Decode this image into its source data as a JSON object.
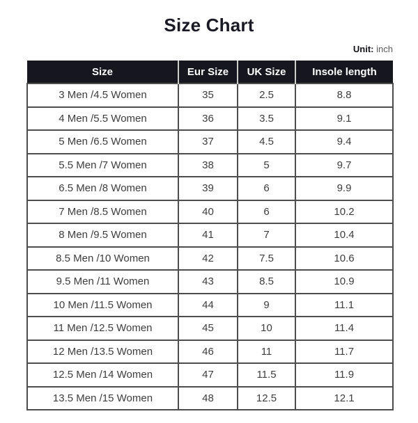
{
  "page": {
    "title": "Size Chart",
    "unit_label": "Unit:",
    "unit_value": "inch"
  },
  "table": {
    "headers": [
      "Size",
      "Eur Size",
      "UK Size",
      "Insole length"
    ],
    "rows": [
      [
        "3 Men /4.5 Women",
        "35",
        "2.5",
        "8.8"
      ],
      [
        "4 Men /5.5 Women",
        "36",
        "3.5",
        "9.1"
      ],
      [
        "5 Men /6.5 Women",
        "37",
        "4.5",
        "9.4"
      ],
      [
        "5.5 Men /7 Women",
        "38",
        "5",
        "9.7"
      ],
      [
        "6.5 Men /8 Women",
        "39",
        "6",
        "9.9"
      ],
      [
        "7 Men /8.5 Women",
        "40",
        "6",
        "10.2"
      ],
      [
        "8 Men /9.5 Women",
        "41",
        "7",
        "10.4"
      ],
      [
        "8.5 Men /10 Women",
        "42",
        "7.5",
        "10.6"
      ],
      [
        "9.5 Men /11 Women",
        "43",
        "8.5",
        "10.9"
      ],
      [
        "10 Men /11.5 Women",
        "44",
        "9",
        "11.1"
      ],
      [
        "11 Men /12.5 Women",
        "45",
        "10",
        "11.4"
      ],
      [
        "12 Men /13.5 Women",
        "46",
        "11",
        "11.7"
      ],
      [
        "12.5 Men /14 Women",
        "47",
        "11.5",
        "11.9"
      ],
      [
        "13.5 Men /15 Women",
        "48",
        "12.5",
        "12.1"
      ]
    ]
  },
  "colors": {
    "header_bg": "#16161f",
    "header_text": "#ffffff",
    "header_divider": "#cccccc",
    "body_border": "#4d4d4d",
    "body_text": "#3d3d3d",
    "title_text": "#1a1a24",
    "unit_value_text": "#595959"
  },
  "chart_data": {
    "type": "table",
    "title": "Size Chart",
    "unit": "inch",
    "columns": [
      "Size",
      "Eur Size",
      "UK Size",
      "Insole length"
    ],
    "rows": [
      [
        "3 Men /4.5 Women",
        35,
        2.5,
        8.8
      ],
      [
        "4 Men /5.5 Women",
        36,
        3.5,
        9.1
      ],
      [
        "5 Men /6.5 Women",
        37,
        4.5,
        9.4
      ],
      [
        "5.5 Men /7 Women",
        38,
        5,
        9.7
      ],
      [
        "6.5 Men /8 Women",
        39,
        6,
        9.9
      ],
      [
        "7 Men /8.5 Women",
        40,
        6,
        10.2
      ],
      [
        "8 Men /9.5 Women",
        41,
        7,
        10.4
      ],
      [
        "8.5 Men /10 Women",
        42,
        7.5,
        10.6
      ],
      [
        "9.5 Men /11 Women",
        43,
        8.5,
        10.9
      ],
      [
        "10 Men /11.5 Women",
        44,
        9,
        11.1
      ],
      [
        "11 Men /12.5 Women",
        45,
        10,
        11.4
      ],
      [
        "12 Men /13.5 Women",
        46,
        11,
        11.7
      ],
      [
        "12.5 Men /14 Women",
        47,
        11.5,
        11.9
      ],
      [
        "13.5 Men /15 Women",
        48,
        12.5,
        12.1
      ]
    ]
  }
}
